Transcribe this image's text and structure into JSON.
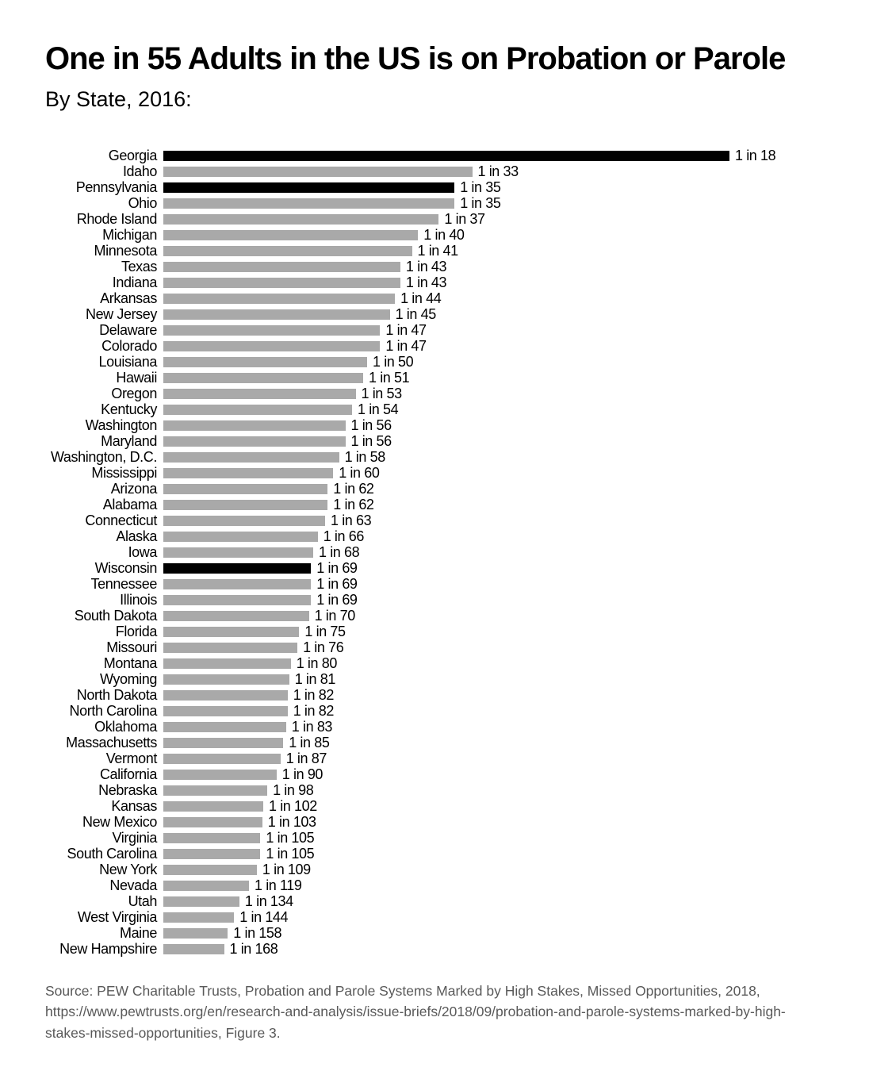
{
  "header": {
    "title": "One in 55 Adults in the US is on Probation or Parole",
    "subtitle": "By State, 2016:"
  },
  "chart_data": {
    "type": "bar",
    "orientation": "horizontal",
    "title": "One in 55 Adults in the US is on Probation or Parole",
    "subtitle": "By State, 2016:",
    "note": "Bar length is proportional to the rate 1/N; values shown as '1 in N' adults on probation or parole",
    "categories": [
      "Georgia",
      "Idaho",
      "Pennsylvania",
      "Ohio",
      "Rhode Island",
      "Michigan",
      "Minnesota",
      "Texas",
      "Indiana",
      "Arkansas",
      "New Jersey",
      "Delaware",
      "Colorado",
      "Louisiana",
      "Hawaii",
      "Oregon",
      "Kentucky",
      "Washington",
      "Maryland",
      "Washington, D.C.",
      "Mississippi",
      "Arizona",
      "Alabama",
      "Connecticut",
      "Alaska",
      "Iowa",
      "Wisconsin",
      "Tennessee",
      "Illinois",
      "South Dakota",
      "Florida",
      "Missouri",
      "Montana",
      "Wyoming",
      "North Dakota",
      "North Carolina",
      "Oklahoma",
      "Massachusetts",
      "Vermont",
      "California",
      "Nebraska",
      "Kansas",
      "New Mexico",
      "Virginia",
      "South Carolina",
      "New York",
      "Nevada",
      "Utah",
      "West Virginia",
      "Maine",
      "New Hampshire"
    ],
    "values": [
      18,
      33,
      35,
      35,
      37,
      40,
      41,
      43,
      43,
      44,
      45,
      47,
      47,
      50,
      51,
      53,
      54,
      56,
      56,
      58,
      60,
      62,
      62,
      63,
      66,
      68,
      69,
      69,
      69,
      70,
      75,
      76,
      80,
      81,
      82,
      82,
      83,
      85,
      87,
      90,
      98,
      102,
      103,
      105,
      105,
      109,
      119,
      134,
      144,
      158,
      168
    ],
    "value_labels": [
      "1 in 18",
      "1 in 33",
      "1 in 35",
      "1 in 35",
      "1 in 37",
      "1 in 40",
      "1 in 41",
      "1 in 43",
      "1 in 43",
      "1 in 44",
      "1 in 45",
      "1 in 47",
      "1 in 47",
      "1 in 50",
      "1 in 51",
      "1 in 53",
      "1 in 54",
      "1 in 56",
      "1 in 56",
      "1 in 58",
      "1 in 60",
      "1 in 62",
      "1 in 62",
      "1 in 63",
      "1 in 66",
      "1 in 68",
      "1 in 69",
      "1 in 69",
      "1 in 69",
      "1 in 70",
      "1 in 75",
      "1 in 76",
      "1 in 80",
      "1 in 81",
      "1 in 82",
      "1 in 82",
      "1 in 83",
      "1 in 85",
      "1 in 87",
      "1 in 90",
      "1 in 98",
      "1 in 102",
      "1 in 103",
      "1 in 105",
      "1 in 105",
      "1 in 109",
      "1 in 119",
      "1 in 134",
      "1 in 144",
      "1 in 158",
      "1 in 168"
    ],
    "highlighted_indices": [
      0,
      2,
      26
    ],
    "bar_color": "#a9a9a9",
    "highlight_color": "#000000",
    "legend_position": "none",
    "grid": false
  },
  "source": {
    "text": "Source: PEW Charitable Trusts, Probation and Parole Systems Marked by High Stakes, Missed Opportunities, 2018,\nhttps://www.pewtrusts.org/en/research-and-analysis/issue-briefs/2018/09/probation-and-parole-systems-marked-by-high-\nstakes-missed-opportunities, Figure 3."
  }
}
